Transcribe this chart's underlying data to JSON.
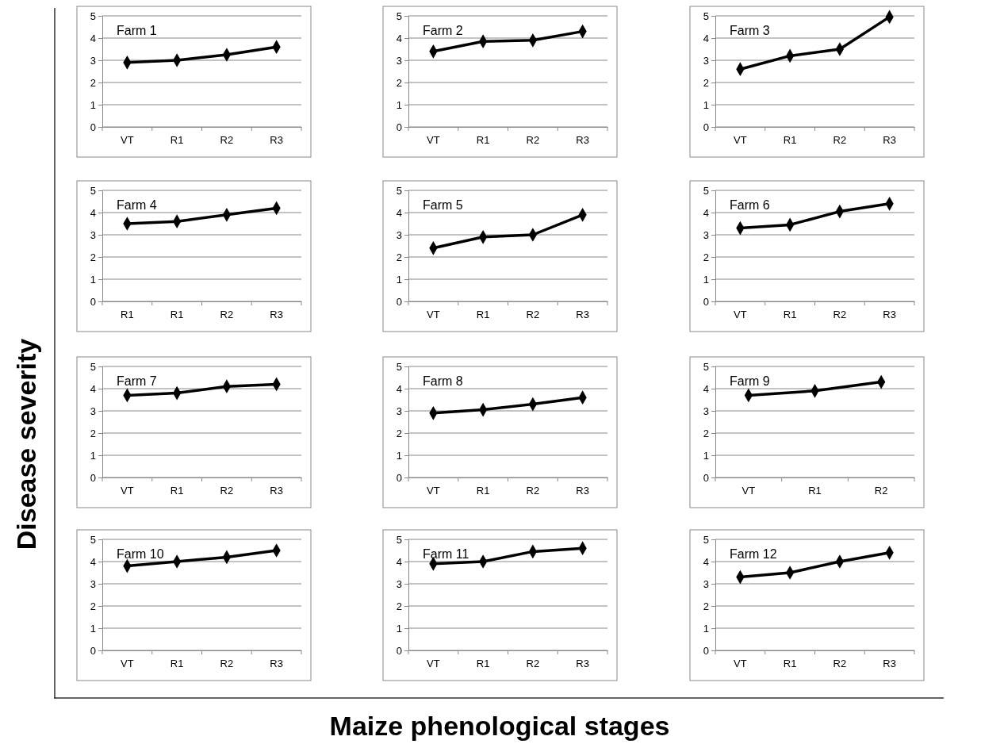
{
  "chart_data": [
    {
      "type": "line",
      "title": "Farm 1",
      "categories": [
        "VT",
        "R1",
        "R2",
        "R3"
      ],
      "series": [
        {
          "color": "#000000",
          "values": [
            2.9,
            3.0,
            3.25,
            3.6
          ]
        }
      ],
      "ylim": [
        0,
        5
      ],
      "yticks": [
        0,
        1,
        2,
        3,
        4,
        5
      ],
      "grid": "y",
      "marker": "diamond"
    },
    {
      "type": "line",
      "title": "Farm 2",
      "categories": [
        "VT",
        "R1",
        "R2",
        "R3"
      ],
      "series": [
        {
          "color": "#000000",
          "values": [
            3.4,
            3.85,
            3.9,
            4.3
          ]
        }
      ],
      "ylim": [
        0,
        5
      ],
      "yticks": [
        0,
        1,
        2,
        3,
        4,
        5
      ],
      "grid": "y",
      "marker": "diamond"
    },
    {
      "type": "line",
      "title": "Farm 3",
      "categories": [
        "VT",
        "R1",
        "R2",
        "R3"
      ],
      "series": [
        {
          "color": "#000000",
          "values": [
            2.6,
            3.2,
            3.5,
            4.95
          ]
        }
      ],
      "ylim": [
        0,
        5
      ],
      "yticks": [
        0,
        1,
        2,
        3,
        4,
        5
      ],
      "grid": "y",
      "marker": "diamond"
    },
    {
      "type": "line",
      "title": "Farm 4",
      "categories": [
        "R1",
        "R1",
        "R2",
        "R3"
      ],
      "series": [
        {
          "color": "#000000",
          "values": [
            3.5,
            3.6,
            3.9,
            4.2
          ]
        }
      ],
      "ylim": [
        0,
        5
      ],
      "yticks": [
        0,
        1,
        2,
        3,
        4,
        5
      ],
      "grid": "y",
      "marker": "diamond"
    },
    {
      "type": "line",
      "title": "Farm 5",
      "categories": [
        "VT",
        "R1",
        "R2",
        "R3"
      ],
      "series": [
        {
          "color": "#000000",
          "values": [
            2.4,
            2.9,
            3.0,
            3.9
          ]
        }
      ],
      "ylim": [
        0,
        5
      ],
      "yticks": [
        0,
        1,
        2,
        3,
        4,
        5
      ],
      "grid": "y",
      "marker": "diamond"
    },
    {
      "type": "line",
      "title": "Farm 6",
      "categories": [
        "VT",
        "R1",
        "R2",
        "R3"
      ],
      "series": [
        {
          "color": "#000000",
          "values": [
            3.3,
            3.45,
            4.05,
            4.4
          ]
        }
      ],
      "ylim": [
        0,
        5
      ],
      "yticks": [
        0,
        1,
        2,
        3,
        4,
        5
      ],
      "grid": "y",
      "marker": "diamond"
    },
    {
      "type": "line",
      "title": "Farm 7",
      "ylabel": "Disease severity",
      "categories": [
        "VT",
        "R1",
        "R2",
        "R3"
      ],
      "series": [
        {
          "color": "#000000",
          "values": [
            3.7,
            3.8,
            4.1,
            4.2
          ]
        }
      ],
      "ylim": [
        0,
        5
      ],
      "yticks": [
        0,
        1,
        2,
        3,
        4,
        5
      ],
      "grid": "y",
      "marker": "diamond"
    },
    {
      "type": "line",
      "title": "Farm 8",
      "categories": [
        "VT",
        "R1",
        "R2",
        "R3"
      ],
      "series": [
        {
          "color": "#000000",
          "values": [
            2.9,
            3.05,
            3.3,
            3.6
          ]
        }
      ],
      "ylim": [
        0,
        5
      ],
      "yticks": [
        0,
        1,
        2,
        3,
        4,
        5
      ],
      "grid": "y",
      "marker": "diamond"
    },
    {
      "type": "line",
      "title": "Farm 9",
      "categories": [
        "VT",
        "R1",
        "R2"
      ],
      "series": [
        {
          "color": "#000000",
          "values": [
            3.7,
            3.9,
            4.3
          ]
        }
      ],
      "ylim": [
        0,
        5
      ],
      "yticks": [
        0,
        1,
        2,
        3,
        4,
        5
      ],
      "grid": "y",
      "marker": "diamond"
    },
    {
      "type": "line",
      "title": "Farm 10",
      "categories": [
        "VT",
        "R1",
        "R2",
        "R3"
      ],
      "series": [
        {
          "color": "#000000",
          "values": [
            3.8,
            4.0,
            4.2,
            4.5
          ]
        }
      ],
      "ylim": [
        0,
        5
      ],
      "yticks": [
        0,
        1,
        2,
        3,
        4,
        5
      ],
      "grid": "y",
      "marker": "diamond"
    },
    {
      "type": "line",
      "title": "Farm 11",
      "xlabel": "Maize phenological stages",
      "categories": [
        "VT",
        "R1",
        "R2",
        "R3"
      ],
      "series": [
        {
          "color": "#000000",
          "values": [
            3.9,
            4.0,
            4.45,
            4.6
          ]
        }
      ],
      "ylim": [
        0,
        5
      ],
      "yticks": [
        0,
        1,
        2,
        3,
        4,
        5
      ],
      "grid": "y",
      "marker": "diamond"
    },
    {
      "type": "line",
      "title": "Farm 12",
      "categories": [
        "VT",
        "R1",
        "R2",
        "R3"
      ],
      "series": [
        {
          "color": "#000000",
          "values": [
            3.3,
            3.5,
            4.0,
            4.4
          ]
        }
      ],
      "ylim": [
        0,
        5
      ],
      "yticks": [
        0,
        1,
        2,
        3,
        4,
        5
      ],
      "grid": "y",
      "marker": "diamond"
    }
  ]
}
